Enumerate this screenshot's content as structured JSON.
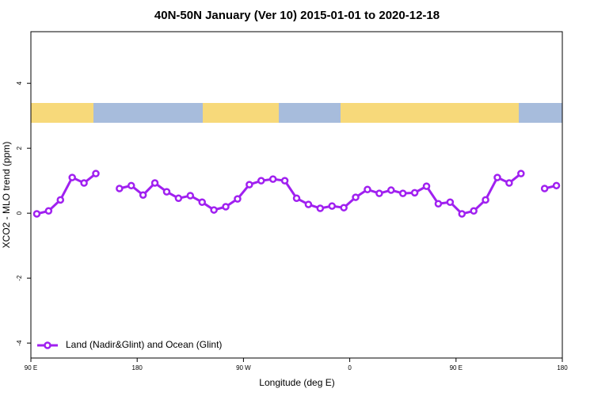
{
  "chart_data": {
    "type": "line",
    "title": "40N-50N January (Ver 10)   2015-01-01 to 2020-12-18",
    "x_label": "Longitude (deg E)",
    "y_label": "XCO2 - MLO trend (ppm)",
    "x": [
      95,
      105,
      115,
      125,
      135,
      145,
      155,
      165,
      175,
      185,
      195,
      205,
      215,
      225,
      235,
      245,
      255,
      265,
      275,
      285,
      295,
      305,
      315,
      325,
      335,
      345,
      355,
      365,
      375,
      385,
      395,
      405,
      415,
      425,
      435,
      445,
      455,
      465,
      475,
      485,
      495,
      505,
      515,
      525,
      535
    ],
    "series": [
      {
        "name": "Land (Nadir&Glint) and Ocean (Glint)",
        "color": "#a020f0",
        "values": [
          -0.02,
          0.07,
          0.41,
          1.1,
          0.93,
          1.22,
          null,
          0.76,
          0.85,
          0.56,
          0.93,
          0.66,
          0.46,
          0.54,
          0.34,
          0.1,
          0.2,
          0.44,
          0.88,
          1.0,
          1.05,
          1.0,
          0.46,
          0.27,
          0.15,
          0.22,
          0.17,
          0.49,
          0.73,
          0.61,
          0.71,
          0.61,
          0.63,
          0.83,
          0.29,
          0.34,
          -0.02,
          0.07,
          0.41,
          1.1,
          0.93,
          1.22,
          null,
          0.76,
          0.85
        ]
      }
    ],
    "xlim": [
      90,
      540
    ],
    "ylim": [
      -4.46,
      5.59
    ],
    "xticks": [
      {
        "value": 90,
        "label": "90 E"
      },
      180,
      {
        "value": 270,
        "label": "90 W"
      },
      {
        "value": 360,
        "label": "0"
      },
      {
        "value": 450,
        "label": "90 E"
      },
      {
        "value": 540,
        "label": "180"
      }
    ],
    "yticks": [
      -4,
      -2,
      0,
      2,
      4
    ],
    "legend": "bottom-left"
  }
}
